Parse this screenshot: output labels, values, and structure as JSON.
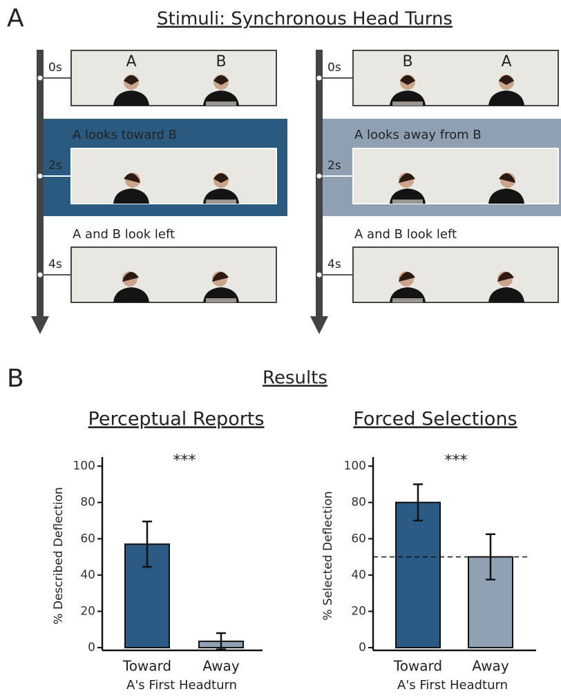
{
  "panel_a": {
    "label": "A",
    "title": "Stimuli: Synchronous Head Turns",
    "timelines": [
      {
        "times": [
          "0s",
          "2s",
          "4s"
        ],
        "frame_labels": [
          "A",
          "B"
        ],
        "captions": [
          "A looks toward B",
          "A and B look left"
        ]
      },
      {
        "times": [
          "0s",
          "2s",
          "4s"
        ],
        "frame_labels": [
          "B",
          "A"
        ],
        "captions": [
          "A looks away from B",
          "A and B look left"
        ]
      }
    ]
  },
  "panel_b": {
    "label": "B",
    "title": "Results"
  },
  "chart_data": [
    {
      "type": "bar",
      "title": "Perceptual Reports",
      "ylabel": "% Described Deflection",
      "xlabel": "A's First Headturn",
      "categories": [
        "Toward",
        "Away"
      ],
      "values": [
        57,
        3.5
      ],
      "errors": [
        12.5,
        4.5
      ],
      "colors": [
        "#2b5b84",
        "#8fa1b3"
      ],
      "annotation": "***",
      "ylim": [
        -1.5,
        105
      ],
      "yticks": [
        0,
        20,
        40,
        60,
        80,
        100
      ]
    },
    {
      "type": "bar",
      "title": "Forced Selections",
      "ylabel": "% Selected Deflection",
      "xlabel": "A's First Headturn",
      "categories": [
        "Toward",
        "Away"
      ],
      "values": [
        80,
        50
      ],
      "errors": [
        10,
        12.5
      ],
      "colors": [
        "#2b5b84",
        "#8fa1b3"
      ],
      "annotation": "***",
      "reference_line": 50,
      "ylim": [
        -1.5,
        105
      ],
      "yticks": [
        0,
        20,
        40,
        60,
        80,
        100
      ]
    }
  ]
}
